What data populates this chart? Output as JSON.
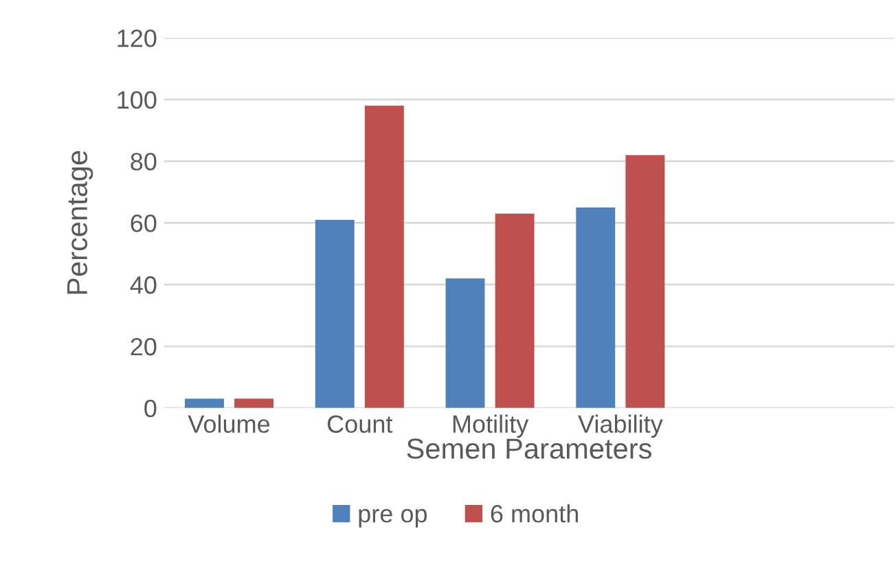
{
  "chart_data": {
    "type": "bar",
    "xlabel": "Semen Parameters",
    "ylabel": "Percentage",
    "categories": [
      "Volume",
      "Count",
      "Motility",
      "Viability",
      null,
      null
    ],
    "series": [
      {
        "name": "pre op",
        "color": "#4f81bd",
        "values": [
          3,
          61,
          42,
          65,
          null,
          null
        ]
      },
      {
        "name": "6 month",
        "color": "#c0504d",
        "values": [
          3,
          98,
          63,
          82,
          null,
          null
        ]
      }
    ],
    "ylim": [
      0,
      120
    ],
    "yticks": [
      0,
      20,
      40,
      60,
      80,
      100,
      120
    ],
    "grid": "y",
    "legend": "bottom"
  }
}
